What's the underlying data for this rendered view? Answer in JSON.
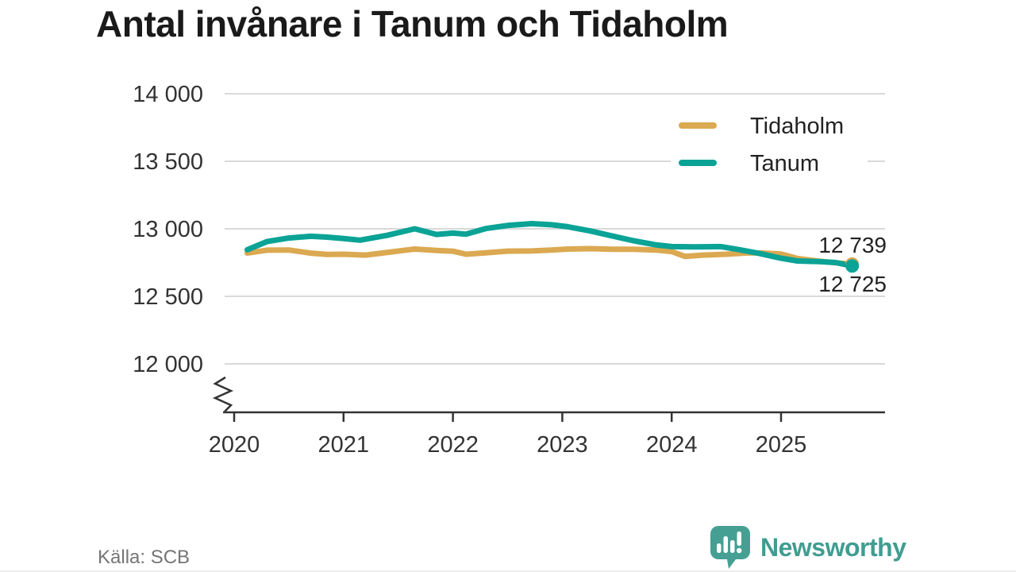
{
  "title": "Antal invånare i Tanum och Tidaholm",
  "source": "Källa: SCB",
  "brand": {
    "name": "Newsworthy",
    "icon": "newsworthy-speech-bubble-bar-chart-icon",
    "color": "#3f9d91"
  },
  "chart_data": {
    "type": "line",
    "title": "Antal invånare i Tanum och Tidaholm",
    "grid": "horizontal",
    "legend_position": "top-right",
    "colors": {
      "tidaholm": "#dba951",
      "tanum": "#0aa396",
      "gridline": "#d9d9d9",
      "axis": "#333333"
    },
    "x_axis": {
      "ticks": [
        {
          "value": 2020,
          "label": "2020"
        },
        {
          "value": 2021,
          "label": "2021"
        },
        {
          "value": 2022,
          "label": "2022"
        },
        {
          "value": 2023,
          "label": "2023"
        },
        {
          "value": 2024,
          "label": "2024"
        },
        {
          "value": 2025,
          "label": "2025"
        }
      ]
    },
    "y_axis": {
      "ticks": [
        {
          "value": 14000,
          "label": "14 000"
        },
        {
          "value": 13500,
          "label": "13 500"
        },
        {
          "value": 13000,
          "label": "13 000"
        },
        {
          "value": 12500,
          "label": "12 500"
        },
        {
          "value": 12000,
          "label": "12 000"
        }
      ],
      "displayed_range": [
        12000,
        14000
      ],
      "axis_break": true
    },
    "series": [
      {
        "name": "Tidaholm",
        "color": "#dba951",
        "end_value": 12739,
        "end_label": "12 739",
        "points": [
          [
            2020.12,
            12820
          ],
          [
            2020.3,
            12842
          ],
          [
            2020.5,
            12843
          ],
          [
            2020.7,
            12820
          ],
          [
            2020.85,
            12810
          ],
          [
            2021.0,
            12812
          ],
          [
            2021.2,
            12805
          ],
          [
            2021.45,
            12830
          ],
          [
            2021.65,
            12850
          ],
          [
            2021.85,
            12840
          ],
          [
            2022.0,
            12834
          ],
          [
            2022.12,
            12812
          ],
          [
            2022.3,
            12822
          ],
          [
            2022.5,
            12835
          ],
          [
            2022.72,
            12836
          ],
          [
            2022.9,
            12843
          ],
          [
            2023.05,
            12850
          ],
          [
            2023.25,
            12853
          ],
          [
            2023.45,
            12849
          ],
          [
            2023.65,
            12849
          ],
          [
            2023.85,
            12843
          ],
          [
            2024.0,
            12832
          ],
          [
            2024.12,
            12796
          ],
          [
            2024.3,
            12806
          ],
          [
            2024.5,
            12812
          ],
          [
            2024.7,
            12822
          ],
          [
            2024.85,
            12820
          ],
          [
            2025.0,
            12813
          ],
          [
            2025.15,
            12780
          ],
          [
            2025.35,
            12760
          ],
          [
            2025.5,
            12748
          ],
          [
            2025.65,
            12739
          ]
        ]
      },
      {
        "name": "Tanum",
        "color": "#0aa396",
        "end_value": 12725,
        "end_label": "12 725",
        "points": [
          [
            2020.12,
            12845
          ],
          [
            2020.3,
            12905
          ],
          [
            2020.5,
            12932
          ],
          [
            2020.7,
            12945
          ],
          [
            2020.85,
            12938
          ],
          [
            2021.0,
            12928
          ],
          [
            2021.15,
            12916
          ],
          [
            2021.4,
            12952
          ],
          [
            2021.65,
            13000
          ],
          [
            2021.85,
            12958
          ],
          [
            2022.0,
            12968
          ],
          [
            2022.12,
            12960
          ],
          [
            2022.3,
            13002
          ],
          [
            2022.5,
            13025
          ],
          [
            2022.72,
            13038
          ],
          [
            2022.9,
            13030
          ],
          [
            2023.05,
            13015
          ],
          [
            2023.25,
            12985
          ],
          [
            2023.45,
            12948
          ],
          [
            2023.65,
            12912
          ],
          [
            2023.85,
            12882
          ],
          [
            2024.0,
            12868
          ],
          [
            2024.2,
            12866
          ],
          [
            2024.45,
            12868
          ],
          [
            2024.6,
            12848
          ],
          [
            2024.8,
            12818
          ],
          [
            2025.0,
            12782
          ],
          [
            2025.15,
            12762
          ],
          [
            2025.35,
            12757
          ],
          [
            2025.5,
            12750
          ],
          [
            2025.65,
            12725
          ]
        ]
      }
    ]
  }
}
